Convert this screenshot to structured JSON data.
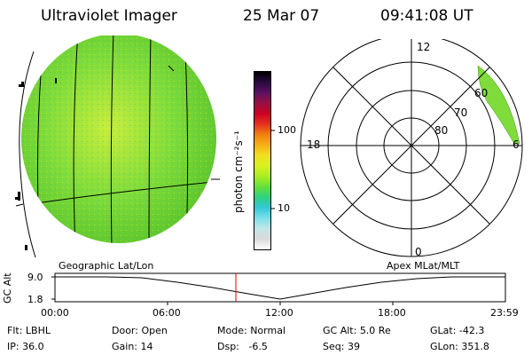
{
  "header": {
    "instrument": "Ultraviolet Imager",
    "date": "25 Mar 07",
    "time": "09:41:08 UT"
  },
  "earth_panel": {
    "label": "Geographic Lat/Lon",
    "fill_color": "#7fdc3a",
    "fill_color_dark": "#5cc52a",
    "fill_color_light": "#c8ee3c"
  },
  "colorbar": {
    "unit_label": "photon cm⁻²s⁻¹",
    "ticks": [
      {
        "label": "100",
        "value": 100
      },
      {
        "label": "10",
        "value": 10
      }
    ],
    "colors": [
      "#ffffff",
      "#dadada",
      "#c0e6e6",
      "#7be0e8",
      "#33c8d8",
      "#2ed17f",
      "#66e03a",
      "#aaee22",
      "#d8f020",
      "#f0e020",
      "#f5b015",
      "#f08010",
      "#e63020",
      "#cc0020",
      "#9a1045",
      "#5a1060",
      "#2a0a40",
      "#000000"
    ]
  },
  "polar_panel": {
    "label": "Apex MLat/MLT",
    "mlt_labels": {
      "top": "12",
      "left": "18",
      "right": "6",
      "bottom": "0"
    },
    "mlat_labels": [
      "80",
      "70",
      "60"
    ],
    "oval_color": "#7fdc3a"
  },
  "altitude_chart": {
    "ylabel": "GC Alt",
    "y_ticks": [
      "9.0",
      "1.8"
    ],
    "y_values": [
      9.0,
      1.8
    ],
    "x_ticks": [
      "00:00",
      "06:00",
      "12:00",
      "18:00",
      "23:59"
    ],
    "current_time_marker": "09:41",
    "marker_color": "#e00000"
  },
  "info": {
    "row1": [
      {
        "label": "Flt:",
        "value": "LBHL"
      },
      {
        "label": "Door:",
        "value": "Open"
      },
      {
        "label": "Mode:",
        "value": "Normal"
      },
      {
        "label": "GC Alt:",
        "value": "5.0 Re"
      },
      {
        "label": "GLat:",
        "value": "-42.3"
      }
    ],
    "row2": [
      {
        "label": "IP:",
        "value": "36.0"
      },
      {
        "label": "Gain:",
        "value": "14"
      },
      {
        "label": "Dsp:",
        "value": "-6.5"
      },
      {
        "label": "Seq:",
        "value": "39"
      },
      {
        "label": "GLon:",
        "value": "351.8"
      }
    ]
  }
}
